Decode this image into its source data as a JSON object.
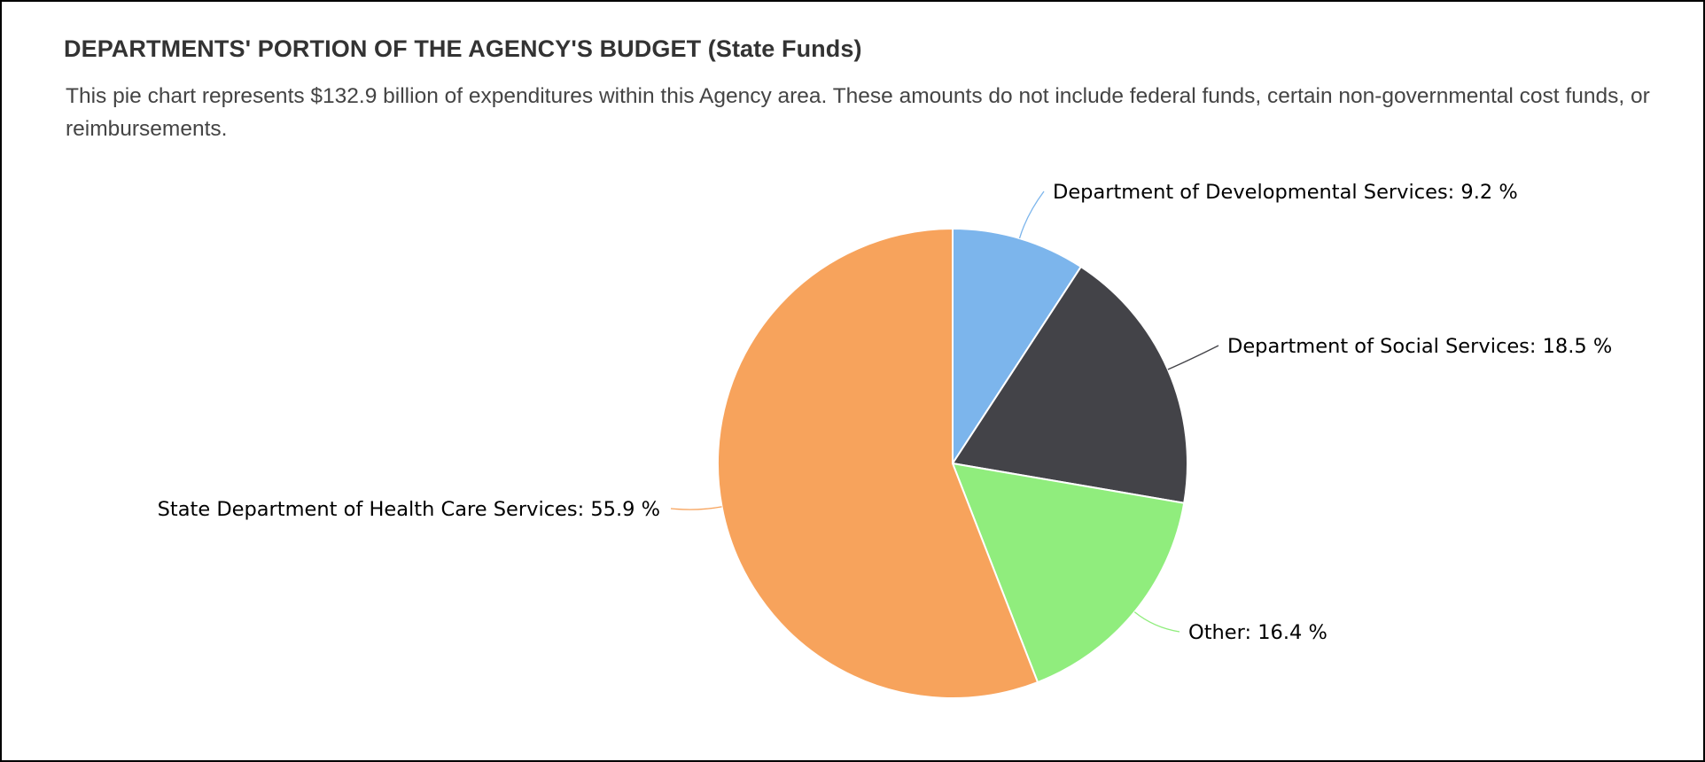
{
  "title": "DEPARTMENTS' PORTION OF THE AGENCY'S BUDGET (State Funds)",
  "description": "This pie chart represents $132.9 billion of expenditures within this Agency area. These amounts do not include federal funds, certain non-governmental cost funds, or reimbursements.",
  "chart_data": {
    "type": "pie",
    "title": "",
    "start_angle": "12 o'clock, clockwise",
    "legend": "none (slice labels with leader lines)",
    "slices": [
      {
        "label": "Department of Developmental Services",
        "value": 9.2,
        "display": "9.2 %",
        "color": "#7CB5EC"
      },
      {
        "label": "Department of Social Services",
        "value": 18.5,
        "display": "18.5 %",
        "color": "#434348"
      },
      {
        "label": "Other",
        "value": 16.4,
        "display": "16.4 %",
        "color": "#90ED7D"
      },
      {
        "label": "State Department of Health Care Services",
        "value": 55.9,
        "display": "55.9 %",
        "color": "#F7A35C"
      }
    ]
  }
}
